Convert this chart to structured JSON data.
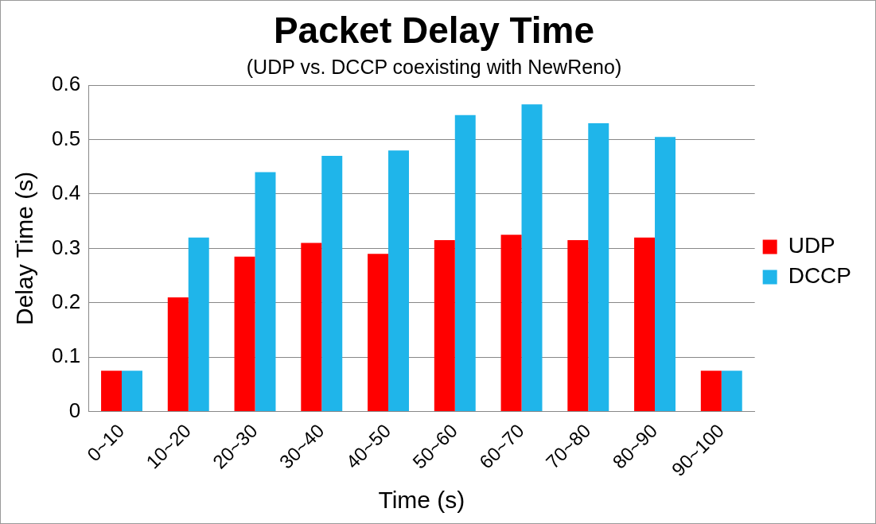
{
  "chart_data": {
    "type": "bar",
    "title": "Packet Delay Time",
    "subtitle": "(UDP vs. DCCP coexisting with NewReno)",
    "xlabel": "Time (s)",
    "ylabel": "Delay Time (s)",
    "categories": [
      "0~10",
      "10~20",
      "20~30",
      "30~40",
      "40~50",
      "50~60",
      "60~70",
      "70~80",
      "80~90",
      "90~100"
    ],
    "series": [
      {
        "name": "UDP",
        "color": "#ff0000",
        "values": [
          0.075,
          0.21,
          0.285,
          0.31,
          0.29,
          0.315,
          0.325,
          0.315,
          0.32,
          0.075
        ]
      },
      {
        "name": "DCCP",
        "color": "#1fb5ea",
        "values": [
          0.075,
          0.32,
          0.44,
          0.47,
          0.48,
          0.545,
          0.565,
          0.53,
          0.505,
          0.075
        ]
      }
    ],
    "ylim": [
      0,
      0.6
    ],
    "yticks": [
      0,
      0.1,
      0.2,
      0.3,
      0.4,
      0.5,
      0.6
    ],
    "grid": "y",
    "legend": "right"
  }
}
